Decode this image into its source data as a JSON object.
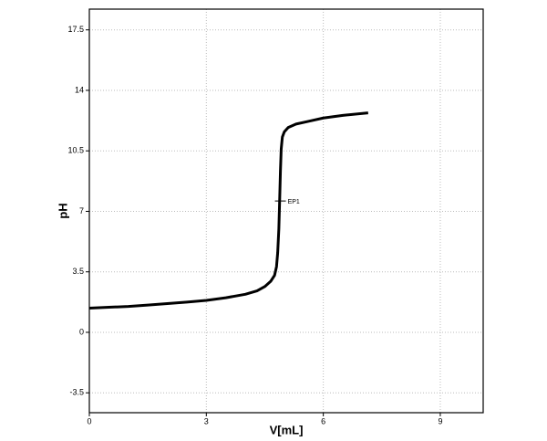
{
  "chart_data": {
    "type": "line",
    "xlabel": "V[mL]",
    "ylabel": "pH",
    "x": [
      0,
      0.5,
      1,
      1.5,
      2,
      2.5,
      3,
      3.5,
      4,
      4.3,
      4.5,
      4.65,
      4.75,
      4.8,
      4.83,
      4.86,
      4.88,
      4.9,
      4.92,
      4.95,
      5.0,
      5.1,
      5.3,
      5.6,
      6.0,
      6.5,
      7.15
    ],
    "series": [
      {
        "color": "#000000",
        "values": [
          1.4,
          1.45,
          1.5,
          1.58,
          1.66,
          1.75,
          1.85,
          2.0,
          2.2,
          2.4,
          2.65,
          2.95,
          3.3,
          3.8,
          4.6,
          6.0,
          7.6,
          9.3,
          10.6,
          11.3,
          11.6,
          11.85,
          12.05,
          12.2,
          12.4,
          12.55,
          12.7
        ]
      }
    ],
    "xlim": [
      0,
      10.1
    ],
    "xticks": [
      0,
      3,
      6,
      9
    ],
    "ylim": [
      -4.65,
      18.7
    ],
    "yticks": [
      -3.5,
      0,
      3.5,
      7,
      10.5,
      14,
      17.5
    ],
    "grid": true,
    "annotations": [
      {
        "text": "EP1",
        "x": 4.9,
        "y": 7.6
      }
    ]
  }
}
